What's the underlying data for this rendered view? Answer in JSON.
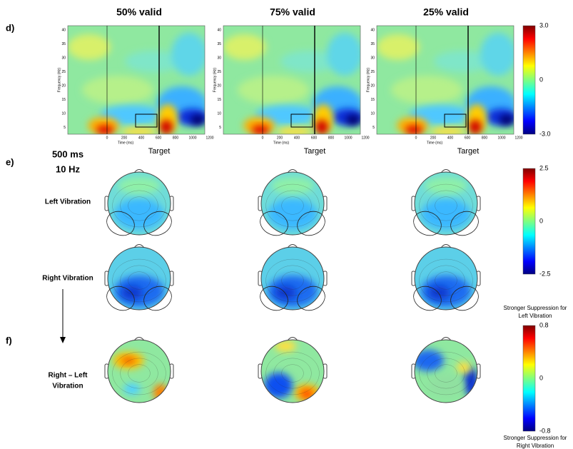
{
  "panels": {
    "d": {
      "label": "d)",
      "columns": [
        "50% valid",
        "75% valid",
        "25% valid"
      ],
      "y_axis_label": "Frequency (Hz)",
      "x_axis_label": "Time (ms)",
      "y_ticks": [
        "40",
        "35",
        "30",
        "25",
        "20",
        "15",
        "10",
        "5"
      ],
      "x_ticks": [
        "0",
        "200",
        "400",
        "600",
        "800",
        "1000",
        "1200"
      ],
      "marker_label": "Target",
      "colorbar": [
        "3.0",
        "0",
        "-3.0"
      ]
    },
    "e": {
      "label": "e)",
      "time": "500 ms",
      "frequency": "10 Hz",
      "rows": [
        "Left Vibration",
        "Right Vibration"
      ],
      "colorbar": [
        "2.5",
        "0",
        "-2.5"
      ]
    },
    "f": {
      "label": "f)",
      "row": [
        "Right – Left",
        "Vibration"
      ],
      "colorbar": [
        "0.8",
        "0",
        "-0.8"
      ],
      "top_note": [
        "Stronger Suppression for",
        "Left Vibration"
      ],
      "bottom_note": [
        "Stronger Suppression for",
        "Right Vibration"
      ]
    }
  }
}
